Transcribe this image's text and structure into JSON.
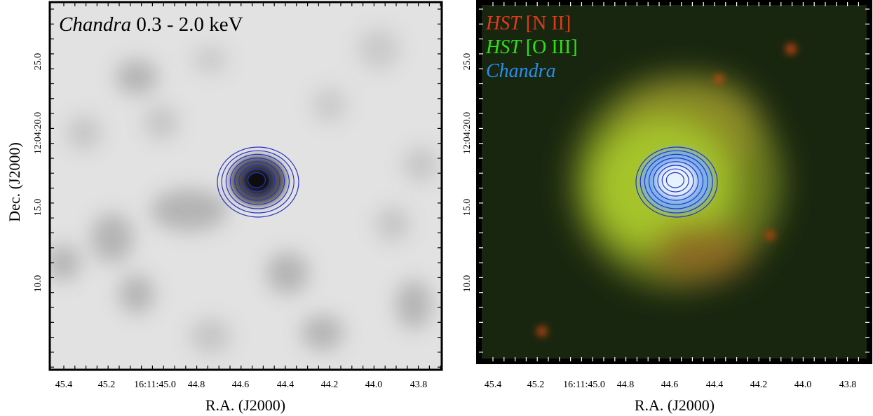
{
  "left_panel": {
    "label_italic": "Chandra",
    "label_rest": "0.3 - 2.0 keV",
    "y_ticks": [
      "25.0",
      "12:04:20.0",
      "15.0",
      "10.0"
    ],
    "x_ticks": [
      "45.4",
      "45.2",
      "16:11:45.0",
      "44.8",
      "44.6",
      "44.4",
      "44.2",
      "44.0",
      "43.8"
    ],
    "x_axis_label": "R.A. (J2000)",
    "y_axis_label": "Dec. (J2000)"
  },
  "right_panel": {
    "legend": [
      {
        "italic": "HST",
        "rest": "[N II]"
      },
      {
        "italic": "HST",
        "rest": "[O III]"
      },
      {
        "italic": "Chandra"
      }
    ],
    "y_ticks": [
      "25.0",
      "12:04:20.0",
      "15.0",
      "10.0"
    ],
    "x_ticks": [
      "45.4",
      "45.2",
      "16:11:45.0",
      "44.8",
      "44.6",
      "44.4",
      "44.2",
      "44.0",
      "43.8"
    ],
    "x_axis_label": "R.A. (J2000)"
  }
}
